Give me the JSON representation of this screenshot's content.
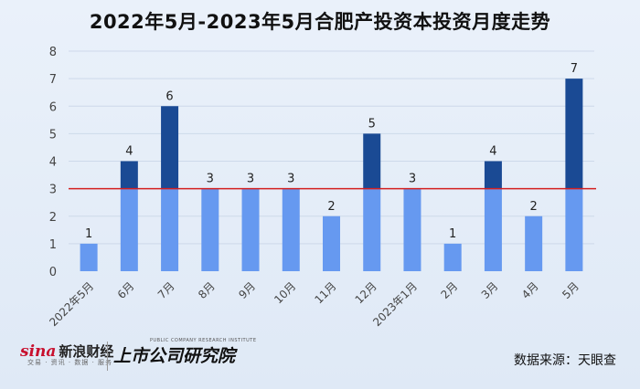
{
  "chart_data": {
    "type": "bar",
    "title": "2022年5月-2023年5月合肥产投资本投资月度走势",
    "categories": [
      "2022年5月",
      "6月",
      "7月",
      "8月",
      "9月",
      "10月",
      "11月",
      "12月",
      "2023年1月",
      "2月",
      "3月",
      "4月",
      "5月"
    ],
    "values": [
      1,
      4,
      6,
      3,
      3,
      3,
      2,
      5,
      3,
      1,
      4,
      2,
      7
    ],
    "ylim": [
      0,
      8
    ],
    "yticks": [
      0,
      1,
      2,
      3,
      4,
      5,
      6,
      7,
      8
    ],
    "reference_line": 3,
    "grid": true,
    "colors": {
      "below_reference": "#6699f0",
      "above_reference": "#1a4a94",
      "reference_line": "#d42020",
      "grid": "#cdd9ea",
      "axis_text": "#444444"
    }
  },
  "footer": {
    "sina_logo": "sina",
    "sina_name": "新浪财经",
    "sina_tagline": "交易 · 资讯 · 数据 · 服务",
    "institute_en": "PUBLIC COMPANY RESEARCH INSTITUTE",
    "institute_cn": "上市公司研究院",
    "source": "数据来源：天眼查"
  }
}
